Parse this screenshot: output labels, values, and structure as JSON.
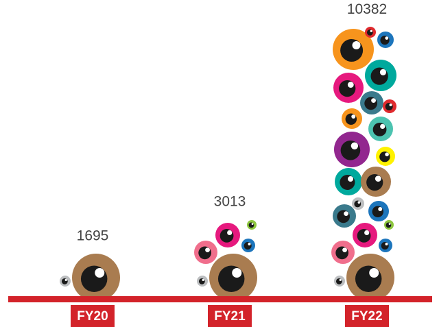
{
  "chart_data": {
    "type": "pictogram",
    "categories": [
      "FY20",
      "FY21",
      "FY22"
    ],
    "values": [
      1695,
      3013,
      10382
    ]
  }
}
